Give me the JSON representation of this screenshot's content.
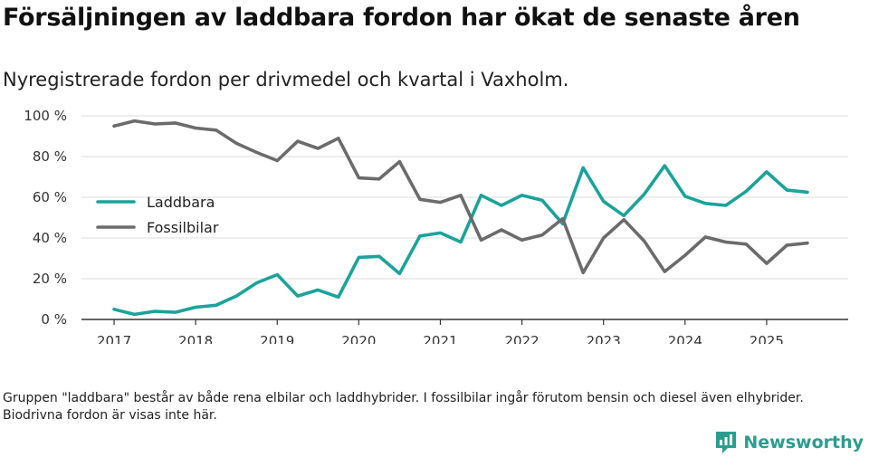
{
  "header": {
    "title": "Försäljningen av laddbara fordon har ökat de senaste åren",
    "subtitle": "Nyregistrerade fordon per drivmedel och kvartal i Vaxholm."
  },
  "chart_data": {
    "type": "line",
    "title": "Försäljningen av laddbara fordon har ökat de senaste åren",
    "subtitle": "Nyregistrerade fordon per drivmedel och kvartal i Vaxholm.",
    "xlabel": "",
    "ylabel": "",
    "x_start": 2017,
    "x_step": 0.25,
    "xlim": [
      2016.6,
      2026.0
    ],
    "ylim": [
      0,
      100
    ],
    "y_ticks": [
      0,
      20,
      40,
      60,
      80,
      100
    ],
    "y_tick_labels": [
      "0 %",
      "20 %",
      "40 %",
      "60 %",
      "80 %",
      "100 %"
    ],
    "x_ticks": [
      2017,
      2018,
      2019,
      2020,
      2021,
      2022,
      2023,
      2024,
      2025
    ],
    "x_tick_labels": [
      "2017",
      "2018",
      "2019",
      "2020",
      "2021",
      "2022",
      "2023",
      "2024",
      "2025"
    ],
    "grid": true,
    "legend_position": "left",
    "series": [
      {
        "name": "Laddbara",
        "color": "#1aa39a",
        "values": [
          5,
          2.5,
          4,
          3.5,
          6,
          7,
          11.5,
          18,
          22,
          11.5,
          14.5,
          11,
          30.5,
          31,
          22.5,
          41,
          42.5,
          38,
          61,
          56,
          61,
          58.5,
          47,
          74.5,
          58,
          51,
          61.5,
          75.5,
          60.5,
          57,
          56,
          63,
          72.5,
          63.5,
          62.5
        ]
      },
      {
        "name": "Fossilbilar",
        "color": "#6b6b6b",
        "values": [
          95,
          97.5,
          96,
          96.5,
          94,
          93,
          86.5,
          82,
          78,
          87.5,
          84,
          89,
          69.5,
          69,
          77.5,
          59,
          57.5,
          61,
          39,
          44,
          39,
          41.5,
          49.5,
          23,
          40,
          49,
          38.5,
          23.5,
          31.5,
          40.5,
          38,
          37,
          27.5,
          36.5,
          37.5
        ]
      }
    ]
  },
  "footnote": "Gruppen \"laddbara\" består av både rena elbilar och laddhybrider. I fossilbilar ingår förutom bensin och diesel även elhybrider. Biodrivna fordon är visas inte här.",
  "brand": {
    "name": "Newsworthy",
    "color": "#2a9d8f"
  }
}
